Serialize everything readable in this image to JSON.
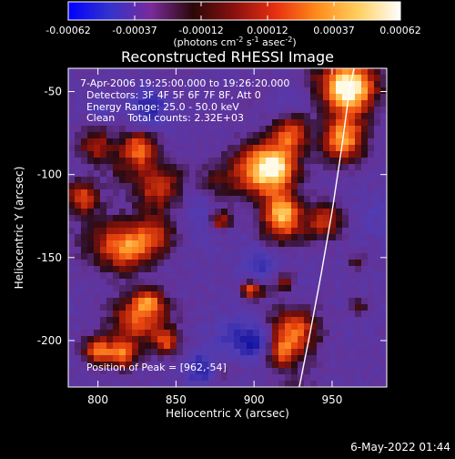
{
  "colors": {
    "background": "#000000",
    "foreground": "#ffffff"
  },
  "colorbar": {
    "colormap": [
      "#0000ff",
      "#3333cc",
      "#7a2a9a",
      "#2a0808",
      "#8b1010",
      "#e83010",
      "#ff8c1a",
      "#ffd060",
      "#ffffff"
    ],
    "ticks": [
      "-0.00062",
      "-0.00037",
      "-0.00012",
      "0.00012",
      "0.00037",
      "0.00062"
    ],
    "units_line": [
      "(photons cm",
      "-2",
      " s",
      "-1",
      " asec",
      "-2",
      ")"
    ]
  },
  "plot": {
    "title": "Reconstructed RHESSI Image",
    "xlabel": "Heliocentric X (arcsec)",
    "ylabel": "Heliocentric Y (arcsec)",
    "xlim": [
      781,
      985
    ],
    "ylim": [
      -228,
      -36
    ],
    "xticks": [
      800,
      850,
      900,
      950
    ],
    "yticks": [
      -50,
      -100,
      -150,
      -200
    ],
    "limb_curve": [
      [
        929,
        -228
      ],
      [
        936,
        -195
      ],
      [
        943,
        -160
      ],
      [
        950,
        -122
      ],
      [
        956,
        -85
      ],
      [
        961,
        -50
      ],
      [
        964,
        -36
      ]
    ],
    "info_lines": [
      "7-Apr-2006 19:25:00.000 to 19:26:20.000",
      "Detectors: 3F 4F 5F 6F 7F 8F, Att 0",
      "Energy Range: 25.0 - 50.0 keV",
      "Clean    Total counts: 2.32E+03"
    ],
    "peak_label": "Position of Peak = [962,-54]"
  },
  "footer": {
    "timestamp": "6-May-2022 01:44"
  }
}
